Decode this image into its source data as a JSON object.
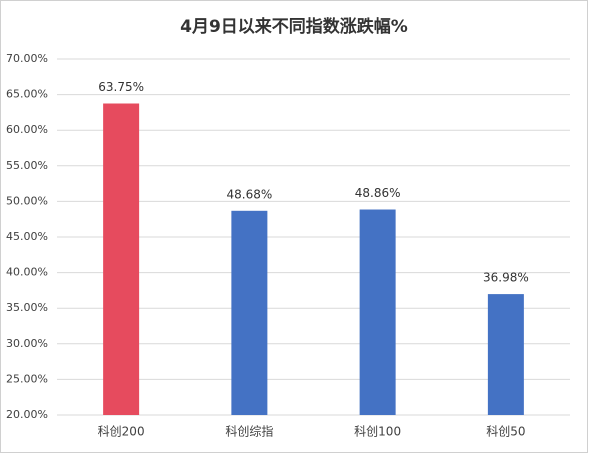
{
  "chart_data": {
    "type": "bar",
    "title": "4月9日以来不同指数涨跌幅%",
    "categories": [
      "科创200",
      "科创综指",
      "科创100",
      "科创50"
    ],
    "values": [
      63.75,
      48.68,
      48.86,
      36.98
    ],
    "value_labels": [
      "63.75%",
      "48.68%",
      "48.86%",
      "36.98%"
    ],
    "colors": [
      "#e64b5e",
      "#4472c4",
      "#4472c4",
      "#4472c4"
    ],
    "ylim": [
      20,
      70
    ],
    "yticks": [
      {
        "value": 20,
        "label": "20.00%"
      },
      {
        "value": 25,
        "label": "25.00%"
      },
      {
        "value": 30,
        "label": "30.00%"
      },
      {
        "value": 35,
        "label": "35.00%"
      },
      {
        "value": 40,
        "label": "40.00%"
      },
      {
        "value": 45,
        "label": "45.00%"
      },
      {
        "value": 50,
        "label": "50.00%"
      },
      {
        "value": 55,
        "label": "55.00%"
      },
      {
        "value": 60,
        "label": "60.00%"
      },
      {
        "value": 65,
        "label": "65.00%"
      },
      {
        "value": 70,
        "label": "70.00%"
      }
    ],
    "grid": true
  }
}
